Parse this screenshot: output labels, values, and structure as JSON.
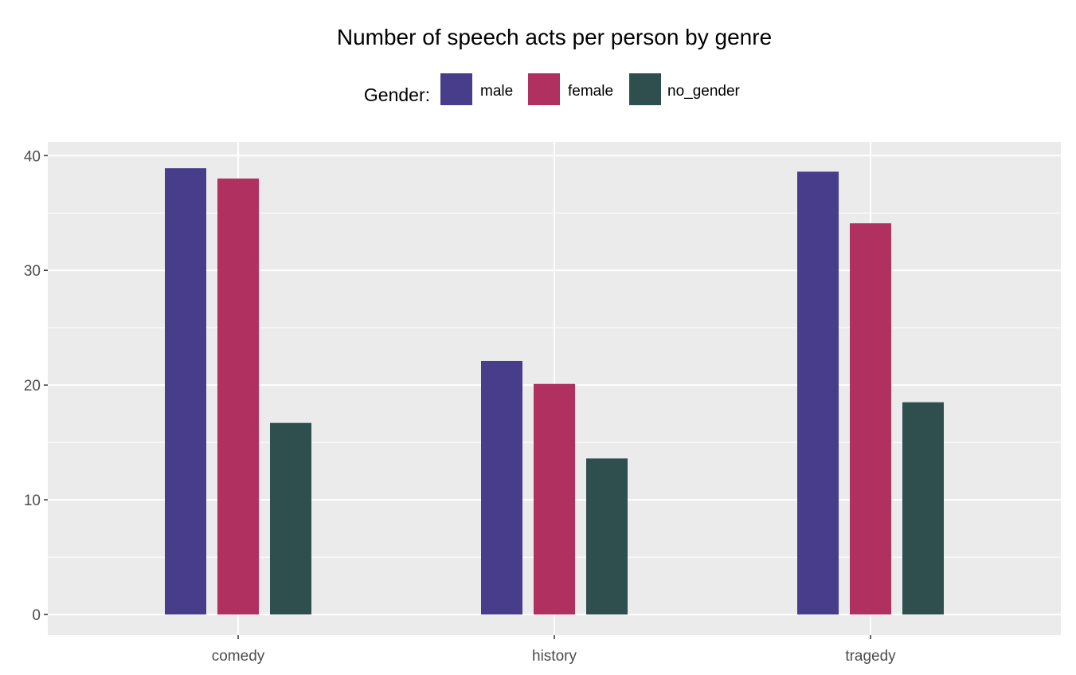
{
  "chart_data": {
    "type": "bar",
    "title": "Number of speech acts per person by genre",
    "legend": {
      "title": "Gender:",
      "position": "top"
    },
    "categories": [
      "comedy",
      "history",
      "tragedy"
    ],
    "series": [
      {
        "name": "male",
        "color": "#483d8b",
        "values": [
          38.9,
          22.1,
          38.6
        ]
      },
      {
        "name": "female",
        "color": "#b03060",
        "values": [
          38.0,
          20.1,
          34.1
        ]
      },
      {
        "name": "no_gender",
        "color": "#2f4f4f",
        "values": [
          16.7,
          13.6,
          18.5
        ]
      }
    ],
    "ylim": [
      -1.8,
      41.2
    ],
    "yticks": [
      0,
      10,
      20,
      30,
      40
    ],
    "xlabel": "",
    "ylabel": "",
    "grid": true,
    "panel_background": "#ebebeb",
    "gridline_color": "#ffffff"
  }
}
